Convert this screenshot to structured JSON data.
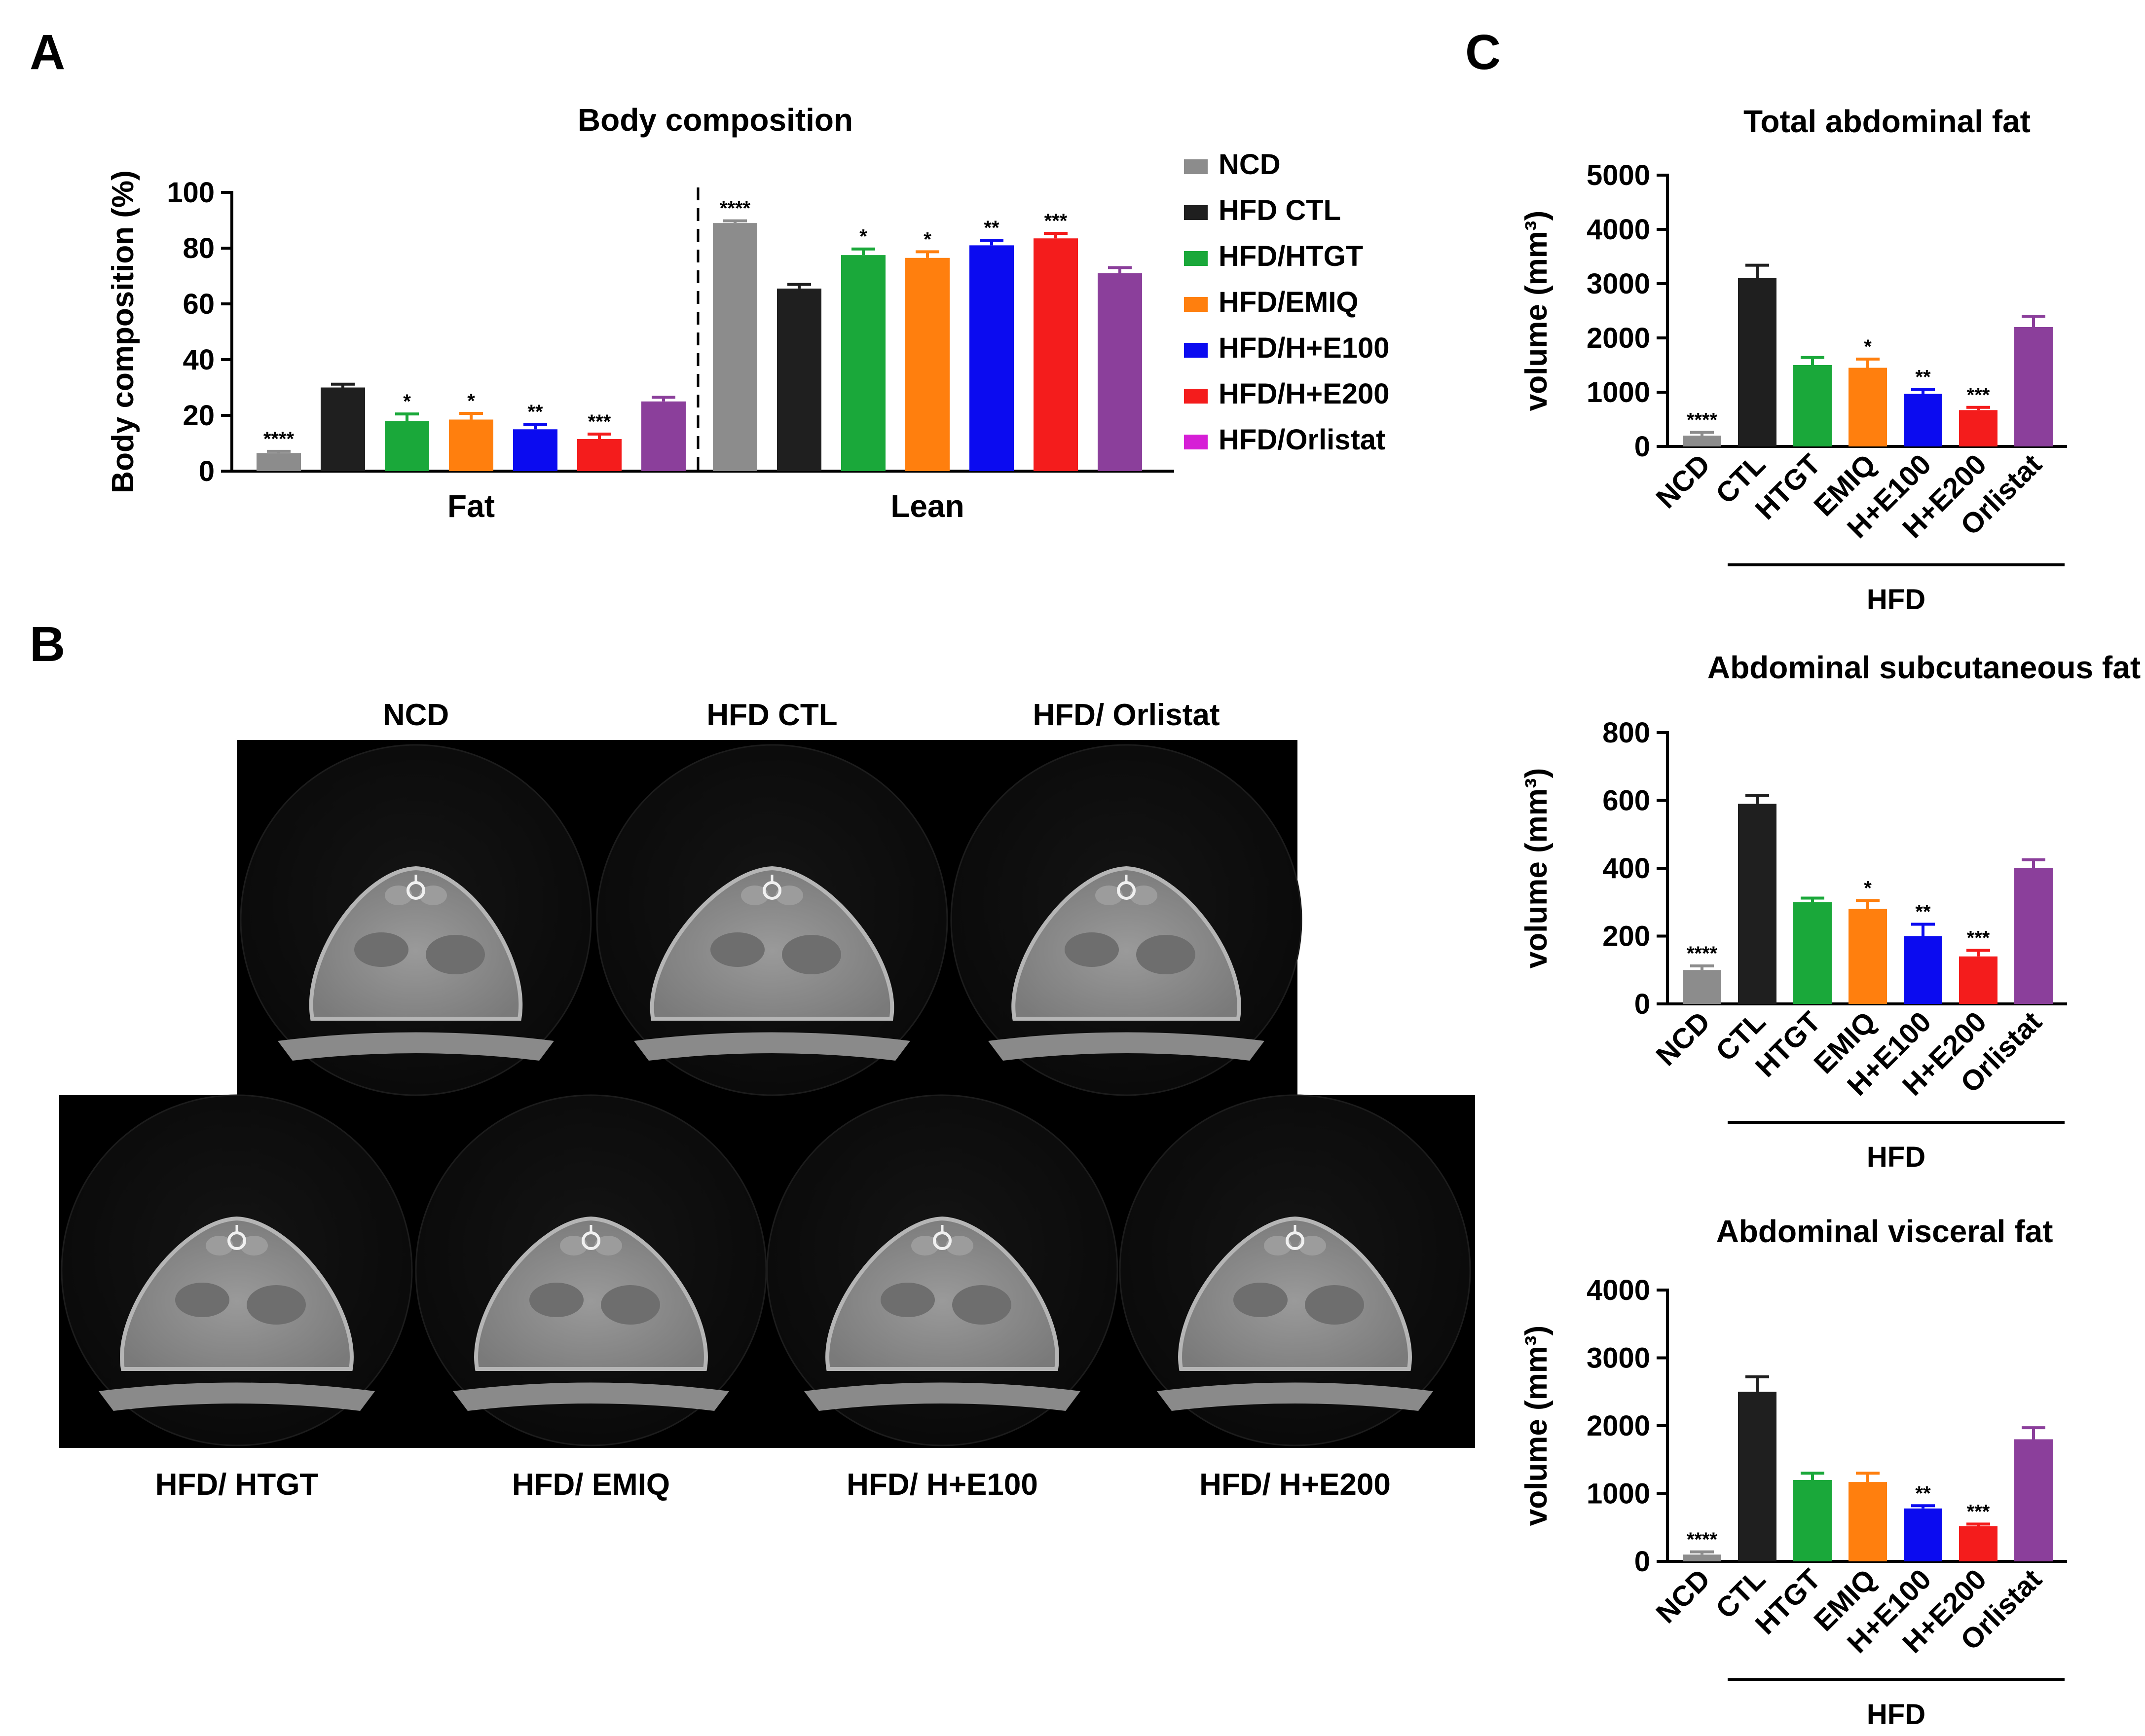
{
  "panel_labels": {
    "a": "A",
    "b": "B",
    "c": "C"
  },
  "colors": {
    "NCD": "#8c8c8c",
    "CTL": "#1f1f1f",
    "HTGT": "#1aa83a",
    "EMIQ": "#ff7f0e",
    "H+E100": "#0b0bf0",
    "H+E200": "#f41c1c",
    "Orlistat": "#8b3f9b",
    "legend_orlistat": "#d61fd6"
  },
  "chart_data": [
    {
      "id": "body-composition",
      "type": "bar",
      "title": "Body composition",
      "xlabel": "",
      "ylabel": "Body composition (%)",
      "ylim": [
        0,
        100
      ],
      "yticks": [
        "0",
        "20",
        "40",
        "60",
        "80",
        "100"
      ],
      "categories": [
        "Fat",
        "Lean"
      ],
      "legend_position": "right",
      "legend": [
        "NCD",
        "HFD CTL",
        "HFD/HTGT",
        "HFD/EMIQ",
        "HFD/H+E100",
        "HFD/H+E200",
        "HFD/Orlistat"
      ],
      "series": [
        {
          "name": "NCD",
          "values": [
            6.5,
            89
          ],
          "errors": [
            0.6,
            0.8
          ],
          "sig": [
            "****",
            "****"
          ]
        },
        {
          "name": "HFD CTL",
          "values": [
            30,
            65.5
          ],
          "errors": [
            1.2,
            1.5
          ],
          "sig": [
            "",
            ""
          ]
        },
        {
          "name": "HFD/HTGT",
          "values": [
            18,
            77.5
          ],
          "errors": [
            2.5,
            2.2
          ],
          "sig": [
            "*",
            "*"
          ]
        },
        {
          "name": "HFD/EMIQ",
          "values": [
            18.5,
            76.5
          ],
          "errors": [
            2.2,
            2.2
          ],
          "sig": [
            "*",
            "*"
          ]
        },
        {
          "name": "HFD/H+E100",
          "values": [
            15,
            81
          ],
          "errors": [
            1.8,
            1.8
          ],
          "sig": [
            "**",
            "**"
          ]
        },
        {
          "name": "HFD/H+E200",
          "values": [
            11.5,
            83.5
          ],
          "errors": [
            1.8,
            1.8
          ],
          "sig": [
            "***",
            "***"
          ]
        },
        {
          "name": "HFD/Orlistat",
          "values": [
            25,
            71
          ],
          "errors": [
            1.5,
            2.0
          ],
          "sig": [
            "",
            ""
          ]
        }
      ]
    },
    {
      "id": "total-abdominal-fat",
      "type": "bar",
      "title": "Total abdominal fat",
      "ylabel": "volume (mm³)",
      "ylim": [
        0,
        5000
      ],
      "yticks": [
        "0",
        "1000",
        "2000",
        "3000",
        "4000",
        "5000"
      ],
      "categories": [
        "NCD",
        "CTL",
        "HTGT",
        "EMIQ",
        "H+E100",
        "H+E200",
        "Orlistat"
      ],
      "values": [
        200,
        3100,
        1500,
        1450,
        970,
        670,
        2200
      ],
      "errors": [
        60,
        240,
        140,
        160,
        80,
        50,
        200
      ],
      "sig": [
        "****",
        "",
        "",
        "*",
        "**",
        "***",
        ""
      ],
      "group_label": "HFD"
    },
    {
      "id": "abdominal-subcutaneous-fat",
      "type": "bar",
      "title": "Abdominal subcutaneous fat",
      "ylabel": "volume (mm³)",
      "ylim": [
        0,
        800
      ],
      "yticks": [
        "0",
        "200",
        "400",
        "600",
        "800"
      ],
      "categories": [
        "NCD",
        "CTL",
        "HTGT",
        "EMIQ",
        "H+E100",
        "H+E200",
        "Orlistat"
      ],
      "values": [
        100,
        590,
        300,
        280,
        200,
        140,
        400
      ],
      "errors": [
        12,
        25,
        12,
        25,
        35,
        18,
        25
      ],
      "sig": [
        "****",
        "",
        "",
        "*",
        "**",
        "***",
        ""
      ],
      "group_label": "HFD"
    },
    {
      "id": "abdominal-visceral-fat",
      "type": "bar",
      "title": "Abdominal visceral fat",
      "ylabel": "volume (mm³)",
      "ylim": [
        0,
        4000
      ],
      "yticks": [
        "0",
        "1000",
        "2000",
        "3000",
        "4000"
      ],
      "categories": [
        "NCD",
        "CTL",
        "HTGT",
        "EMIQ",
        "H+E100",
        "H+E200",
        "Orlistat"
      ],
      "values": [
        100,
        2500,
        1200,
        1170,
        780,
        520,
        1800
      ],
      "errors": [
        40,
        220,
        100,
        130,
        40,
        30,
        170
      ],
      "sig": [
        "****",
        "",
        "",
        "",
        "**",
        "***",
        ""
      ],
      "group_label": "HFD"
    }
  ],
  "ct_images": {
    "top": [
      "NCD",
      "HFD CTL",
      "HFD/ Orlistat"
    ],
    "bottom": [
      "HFD/ HTGT",
      "HFD/ EMIQ",
      "HFD/ H+E100",
      "HFD/ H+E200"
    ]
  }
}
